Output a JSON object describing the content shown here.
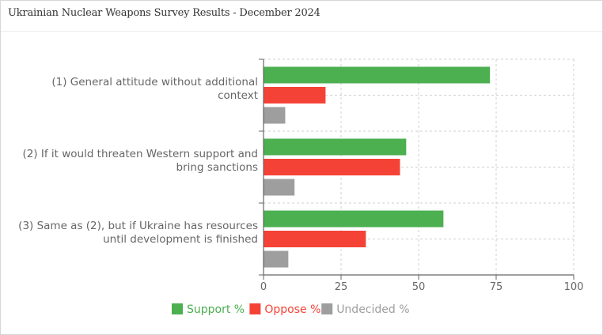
{
  "title": "Ukrainian Nuclear Weapons Survey Results - December 2024",
  "chart_data": {
    "type": "bar",
    "orientation": "horizontal",
    "categories": [
      [
        "(1) General attitude without additional",
        "context"
      ],
      [
        "(2) If it would threaten Western support and",
        "bring sanctions"
      ],
      [
        "(3) Same as (2), but if Ukraine has resources",
        "until development is finished"
      ]
    ],
    "series": [
      {
        "name": "Support %",
        "color": "#4caf50",
        "values": [
          73,
          46,
          58
        ]
      },
      {
        "name": "Oppose %",
        "color": "#f44336",
        "values": [
          20,
          44,
          33
        ]
      },
      {
        "name": "Undecided %",
        "color": "#9e9e9e",
        "values": [
          7,
          10,
          8
        ]
      }
    ],
    "xlim": [
      0,
      100
    ],
    "xticks": [
      "0",
      "25",
      "50",
      "75",
      "100"
    ],
    "grid": true,
    "legend": "bottom"
  }
}
